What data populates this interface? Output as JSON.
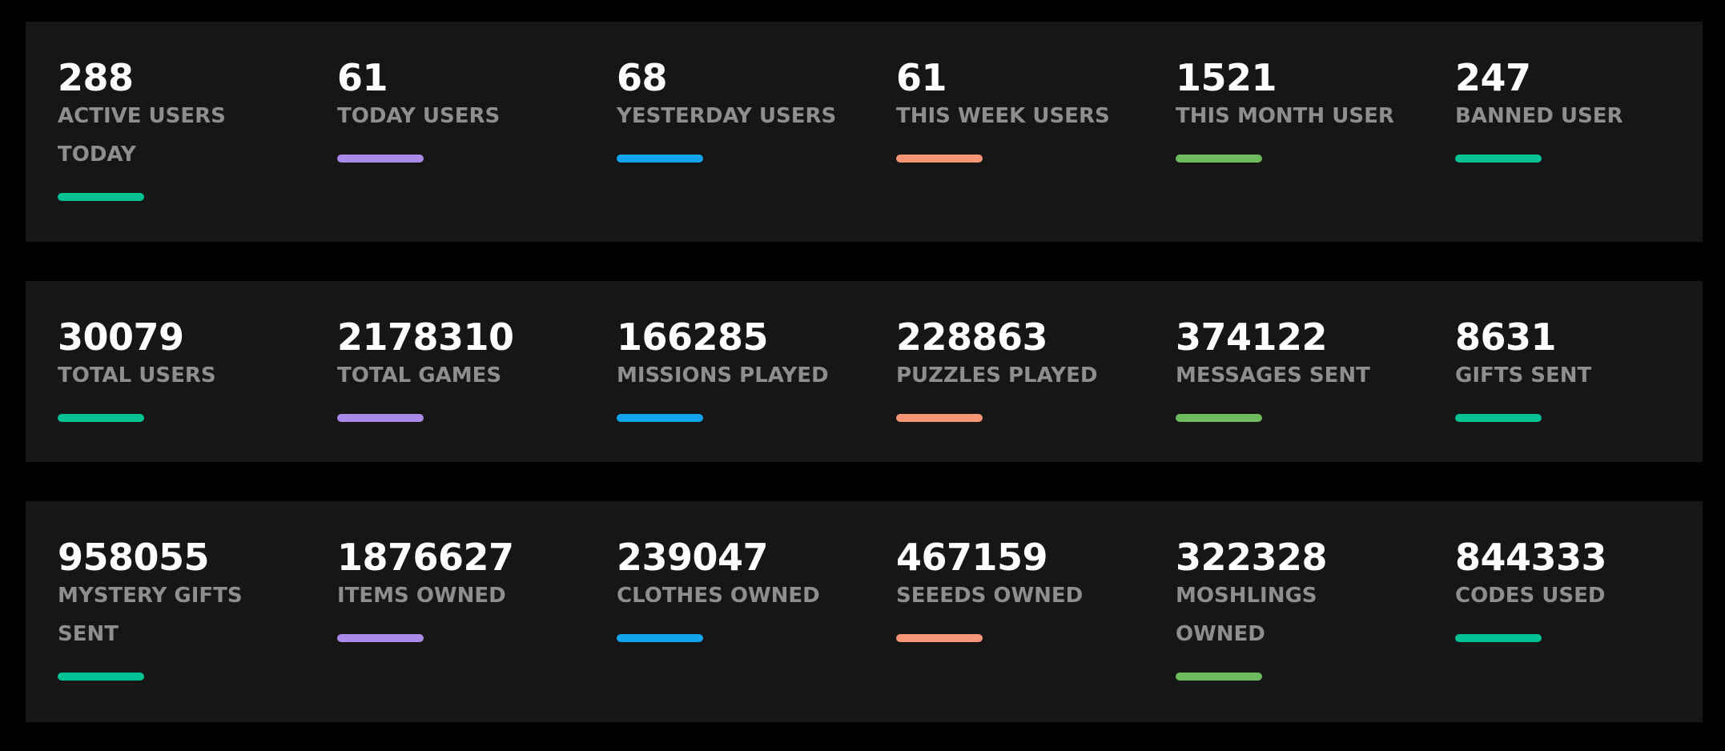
{
  "colors": {
    "background": "#000000",
    "panel": "#161616",
    "value_text": "#ffffff",
    "label_text": "#8e8e8e",
    "accents": [
      "#00c194",
      "#a98ae8",
      "#10a4ec",
      "#f79677",
      "#6dbb5e",
      "#00c194"
    ]
  },
  "rows": [
    {
      "stats": [
        {
          "value": "288",
          "label": "ACTIVE USERS TODAY"
        },
        {
          "value": "61",
          "label": "TODAY USERS"
        },
        {
          "value": "68",
          "label": "YESTERDAY USERS"
        },
        {
          "value": "61",
          "label": "THIS WEEK USERS"
        },
        {
          "value": "1521",
          "label": "THIS MONTH USER"
        },
        {
          "value": "247",
          "label": "BANNED USER"
        }
      ]
    },
    {
      "stats": [
        {
          "value": "30079",
          "label": "TOTAL USERS"
        },
        {
          "value": "2178310",
          "label": "TOTAL GAMES"
        },
        {
          "value": "166285",
          "label": "MISSIONS PLAYED"
        },
        {
          "value": "228863",
          "label": "PUZZLES PLAYED"
        },
        {
          "value": "374122",
          "label": "MESSAGES SENT"
        },
        {
          "value": "8631",
          "label": "GIFTS SENT"
        }
      ]
    },
    {
      "stats": [
        {
          "value": "958055",
          "label": "MYSTERY GIFTS SENT"
        },
        {
          "value": "1876627",
          "label": "ITEMS OWNED"
        },
        {
          "value": "239047",
          "label": "CLOTHES OWNED"
        },
        {
          "value": "467159",
          "label": "SEEEDS OWNED"
        },
        {
          "value": "322328",
          "label": "MOSHLINGS OWNED"
        },
        {
          "value": "844333",
          "label": "CODES USED"
        }
      ]
    }
  ]
}
